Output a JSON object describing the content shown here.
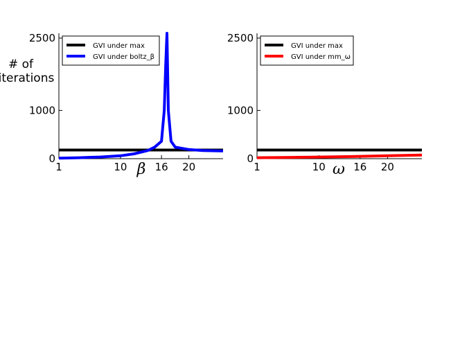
{
  "chart_data": [
    {
      "type": "line",
      "ylabel_lines": [
        "# of",
        "iterations"
      ],
      "xlabel": "β",
      "x_ticks": [
        1,
        10,
        16,
        20
      ],
      "y_ticks": [
        0,
        1000,
        2500
      ],
      "xlim": [
        1,
        25
      ],
      "ylim": [
        0,
        2600
      ],
      "legend": "top-left",
      "series": [
        {
          "name": "GVI under max",
          "color": "#000000",
          "x": [
            1,
            25
          ],
          "y": [
            180,
            180
          ]
        },
        {
          "name": "GVI under boltz_β",
          "color": "#0000ff",
          "x": [
            1,
            4,
            7,
            10,
            12,
            14,
            15,
            16,
            16.4,
            16.6,
            16.8,
            17,
            17.4,
            18,
            20,
            22,
            25
          ],
          "y": [
            10,
            20,
            35,
            60,
            100,
            170,
            240,
            360,
            1000,
            1900,
            2600,
            1000,
            360,
            240,
            190,
            170,
            160
          ]
        }
      ]
    },
    {
      "type": "line",
      "xlabel": "ω",
      "x_ticks": [
        1,
        10,
        16,
        20
      ],
      "y_ticks": [
        0,
        1000,
        2500
      ],
      "xlim": [
        1,
        25
      ],
      "ylim": [
        0,
        2600
      ],
      "legend": "top-left",
      "series": [
        {
          "name": "GVI under max",
          "color": "#000000",
          "x": [
            1,
            25
          ],
          "y": [
            180,
            180
          ]
        },
        {
          "name": "GVI under mm_ω",
          "color": "#ff0000",
          "x": [
            1,
            5,
            10,
            15,
            20,
            25
          ],
          "y": [
            20,
            25,
            35,
            45,
            60,
            75
          ]
        }
      ]
    }
  ]
}
